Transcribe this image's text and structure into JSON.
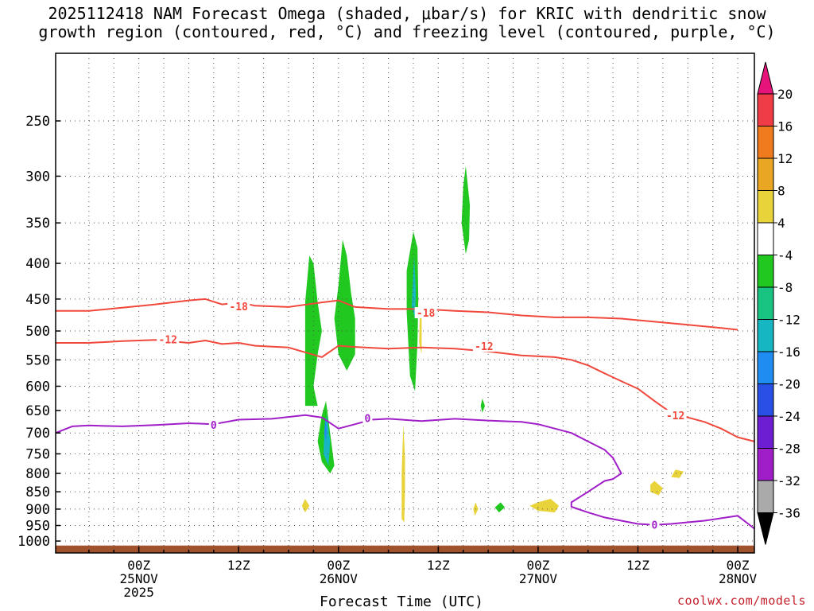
{
  "title_line1": "2025112418 NAM Forecast Omega (shaded, μbar/s) for KRIC with dendritic snow",
  "title_line2": "growth region (contoured, red, °C) and freezing level (contoured, purple, °C)",
  "credit": "coolwx.com/models",
  "chart_data": {
    "type": "heatmap",
    "xlabel": "Forecast Time (UTC)",
    "ylabel": "",
    "x_range_hours": [
      -10,
      74
    ],
    "y_axis": "pressure (mb), inverted, log scale",
    "y_range": [
      1040,
      200
    ],
    "y_ticks": [
      250,
      300,
      350,
      400,
      450,
      500,
      550,
      600,
      650,
      700,
      750,
      800,
      850,
      900,
      950,
      1000
    ],
    "x_ticks": [
      {
        "hour": 0,
        "lines": [
          "00Z",
          "25NOV",
          "2025"
        ]
      },
      {
        "hour": 12,
        "lines": [
          "12Z"
        ]
      },
      {
        "hour": 24,
        "lines": [
          "00Z",
          "26NOV"
        ]
      },
      {
        "hour": 36,
        "lines": [
          "12Z"
        ]
      },
      {
        "hour": 48,
        "lines": [
          "00Z",
          "27NOV"
        ]
      },
      {
        "hour": 60,
        "lines": [
          "12Z"
        ]
      },
      {
        "hour": 72,
        "lines": [
          "00Z",
          "28NOV"
        ]
      }
    ],
    "grid": true,
    "colorbar": {
      "labels": [
        "20",
        "16",
        "12",
        "8",
        "4",
        "-4",
        "-8",
        "-12",
        "-16",
        "-20",
        "-24",
        "-28",
        "-32",
        "-36"
      ],
      "colors": [
        "#f03c46",
        "#f07a1e",
        "#e8a623",
        "#e8d43a",
        "#ffffff",
        "#20c820",
        "#19c382",
        "#16b7c2",
        "#1e8cf0",
        "#2850e6",
        "#6e1ed2",
        "#a01ec8",
        "#aaaaaa"
      ],
      "top_arrow": "#e6147a",
      "bottom_arrow": "#000000"
    },
    "contours": [
      {
        "name": "-18",
        "color": "#f0483c",
        "points": [
          [
            -10,
            468
          ],
          [
            -6,
            468
          ],
          [
            -2,
            463
          ],
          [
            2,
            458
          ],
          [
            6,
            452
          ],
          [
            8,
            450
          ],
          [
            10,
            458
          ],
          [
            12,
            455
          ],
          [
            14,
            460
          ],
          [
            18,
            462
          ],
          [
            22,
            455
          ],
          [
            24,
            452
          ],
          [
            26,
            462
          ],
          [
            30,
            465
          ],
          [
            34,
            465
          ],
          [
            38,
            468
          ],
          [
            42,
            470
          ],
          [
            46,
            475
          ],
          [
            50,
            478
          ],
          [
            54,
            478
          ],
          [
            58,
            480
          ],
          [
            62,
            485
          ],
          [
            66,
            490
          ],
          [
            70,
            495
          ],
          [
            72,
            498
          ]
        ]
      },
      {
        "name": "-12",
        "color": "#f0483c",
        "points": [
          [
            -10,
            520
          ],
          [
            -6,
            520
          ],
          [
            -2,
            517
          ],
          [
            2,
            515
          ],
          [
            6,
            520
          ],
          [
            8,
            516
          ],
          [
            10,
            522
          ],
          [
            12,
            520
          ],
          [
            14,
            525
          ],
          [
            18,
            528
          ],
          [
            22,
            545
          ],
          [
            24,
            525
          ],
          [
            26,
            527
          ],
          [
            30,
            530
          ],
          [
            34,
            528
          ],
          [
            38,
            530
          ],
          [
            42,
            535
          ],
          [
            46,
            542
          ],
          [
            50,
            545
          ],
          [
            52,
            550
          ],
          [
            54,
            560
          ],
          [
            56,
            575
          ],
          [
            58,
            590
          ],
          [
            60,
            605
          ],
          [
            62,
            630
          ],
          [
            64,
            655
          ],
          [
            66,
            665
          ],
          [
            68,
            675
          ],
          [
            70,
            690
          ],
          [
            72,
            710
          ],
          [
            74,
            720
          ]
        ]
      },
      {
        "name": "0",
        "color": "#a01ec8",
        "points": [
          [
            -10,
            700
          ],
          [
            -8,
            685
          ],
          [
            -6,
            683
          ],
          [
            -2,
            685
          ],
          [
            2,
            682
          ],
          [
            6,
            678
          ],
          [
            9,
            680
          ],
          [
            12,
            670
          ],
          [
            16,
            668
          ],
          [
            20,
            660
          ],
          [
            22,
            665
          ],
          [
            24,
            690
          ],
          [
            26,
            680
          ],
          [
            28,
            670
          ],
          [
            30,
            668
          ],
          [
            34,
            673
          ],
          [
            38,
            668
          ],
          [
            42,
            672
          ],
          [
            46,
            675
          ],
          [
            48,
            680
          ],
          [
            50,
            690
          ],
          [
            52,
            700
          ],
          [
            54,
            720
          ],
          [
            56,
            740
          ],
          [
            57,
            760
          ],
          [
            58,
            800
          ],
          [
            57,
            815
          ],
          [
            56,
            820
          ],
          [
            54,
            850
          ],
          [
            52,
            880
          ],
          [
            52,
            893
          ],
          [
            54,
            910
          ],
          [
            56,
            925
          ],
          [
            58,
            935
          ],
          [
            60,
            945
          ],
          [
            62,
            948
          ],
          [
            64,
            945
          ],
          [
            66,
            940
          ],
          [
            68,
            935
          ],
          [
            72,
            920
          ],
          [
            74,
            960
          ]
        ]
      }
    ],
    "contour_labels": [
      {
        "text": "-18",
        "hour": 12.0,
        "mb": 462
      },
      {
        "text": "-18",
        "hour": 34.5,
        "mb": 472
      },
      {
        "text": "-12",
        "hour": 3.5,
        "mb": 515
      },
      {
        "text": "-12",
        "hour": 41.5,
        "mb": 527
      },
      {
        "text": "-12",
        "hour": 64.5,
        "mb": 662
      },
      {
        "text": "0",
        "hour": 9.0,
        "mb": 683
      },
      {
        "text": "0",
        "hour": 27.5,
        "mb": 668
      },
      {
        "text": "0",
        "hour": 62.0,
        "mb": 950
      }
    ],
    "omega_regions": [
      {
        "color": "#20c820",
        "points": [
          [
            20.5,
            390
          ],
          [
            21,
            400
          ],
          [
            21.5,
            455
          ],
          [
            22,
            500
          ],
          [
            21.5,
            540
          ],
          [
            21,
            600
          ],
          [
            21.5,
            640
          ],
          [
            20,
            640
          ],
          [
            20,
            625
          ],
          [
            20,
            455
          ],
          [
            20.5,
            390
          ]
        ]
      },
      {
        "color": "#20c820",
        "points": [
          [
            24.5,
            370
          ],
          [
            25,
            390
          ],
          [
            25.5,
            440
          ],
          [
            26,
            480
          ],
          [
            26,
            540
          ],
          [
            25,
            570
          ],
          [
            24,
            540
          ],
          [
            23.5,
            480
          ],
          [
            24,
            430
          ],
          [
            24.5,
            370
          ]
        ]
      },
      {
        "color": "#20c820",
        "points": [
          [
            22.5,
            630
          ],
          [
            23,
            700
          ],
          [
            23.5,
            780
          ],
          [
            23,
            800
          ],
          [
            22,
            770
          ],
          [
            21.5,
            720
          ],
          [
            22,
            660
          ],
          [
            22.5,
            630
          ]
        ]
      },
      {
        "color": "#16b7c2",
        "points": [
          [
            22.6,
            660
          ],
          [
            23,
            720
          ],
          [
            22.8,
            780
          ],
          [
            22.2,
            750
          ],
          [
            22.3,
            690
          ],
          [
            22.6,
            660
          ]
        ]
      },
      {
        "color": "#1e8cf0",
        "points": [
          [
            22.4,
            670
          ],
          [
            22.6,
            690
          ],
          [
            22.5,
            720
          ],
          [
            22.3,
            700
          ],
          [
            22.4,
            670
          ]
        ]
      },
      {
        "color": "#20c820",
        "points": [
          [
            33,
            360
          ],
          [
            33.5,
            380
          ],
          [
            33.6,
            450
          ],
          [
            33.5,
            520
          ],
          [
            33.2,
            610
          ],
          [
            32.6,
            580
          ],
          [
            32.2,
            470
          ],
          [
            32.2,
            410
          ],
          [
            33,
            360
          ]
        ]
      },
      {
        "color": "#16b7c2",
        "points": [
          [
            33.1,
            390
          ],
          [
            33.3,
            440
          ],
          [
            33.2,
            480
          ],
          [
            32.8,
            460
          ],
          [
            33.1,
            390
          ]
        ]
      },
      {
        "color": "#20c820",
        "points": [
          [
            39.3,
            290
          ],
          [
            39.8,
            330
          ],
          [
            39.7,
            370
          ],
          [
            39.3,
            388
          ],
          [
            38.8,
            350
          ],
          [
            39,
            310
          ],
          [
            39.3,
            290
          ]
        ]
      },
      {
        "color": "#e8d43a",
        "points": [
          [
            33.8,
            460
          ],
          [
            34,
            480
          ],
          [
            34,
            540
          ],
          [
            33.7,
            520
          ],
          [
            33.8,
            460
          ]
        ]
      },
      {
        "color": "#e8d43a",
        "points": [
          [
            31.8,
            680
          ],
          [
            32,
            760
          ],
          [
            32,
            850
          ],
          [
            31.9,
            940
          ],
          [
            31.6,
            930
          ],
          [
            31.6,
            800
          ],
          [
            31.8,
            680
          ]
        ]
      },
      {
        "color": "#e8d43a",
        "points": [
          [
            20,
            870
          ],
          [
            20.5,
            890
          ],
          [
            20,
            910
          ],
          [
            19.6,
            890
          ],
          [
            20,
            870
          ]
        ]
      },
      {
        "color": "#e8d43a",
        "points": [
          [
            48,
            880
          ],
          [
            49.5,
            870
          ],
          [
            50.5,
            890
          ],
          [
            50,
            910
          ],
          [
            48,
            905
          ],
          [
            47,
            890
          ],
          [
            48,
            880
          ]
        ]
      },
      {
        "color": "#e8d43a",
        "points": [
          [
            62,
            820
          ],
          [
            63,
            840
          ],
          [
            62.5,
            860
          ],
          [
            61.5,
            850
          ],
          [
            61.5,
            830
          ],
          [
            62,
            820
          ]
        ]
      },
      {
        "color": "#e8d43a",
        "points": [
          [
            64.5,
            790
          ],
          [
            65.5,
            795
          ],
          [
            65,
            812
          ],
          [
            64,
            810
          ],
          [
            64.5,
            790
          ]
        ]
      },
      {
        "color": "#20c820",
        "points": [
          [
            43.5,
            880
          ],
          [
            44,
            895
          ],
          [
            43.3,
            910
          ],
          [
            42.8,
            895
          ],
          [
            43.5,
            880
          ]
        ]
      },
      {
        "color": "#20c820",
        "points": [
          [
            41.3,
            625
          ],
          [
            41.6,
            640
          ],
          [
            41.3,
            655
          ],
          [
            41.1,
            640
          ],
          [
            41.3,
            625
          ]
        ]
      },
      {
        "color": "#e8d43a",
        "points": [
          [
            40.5,
            880
          ],
          [
            40.8,
            900
          ],
          [
            40.4,
            920
          ],
          [
            40.2,
            900
          ],
          [
            40.5,
            880
          ]
        ]
      }
    ],
    "terrain": {
      "color": "#a0522d",
      "pressure_mb": 1015
    }
  }
}
